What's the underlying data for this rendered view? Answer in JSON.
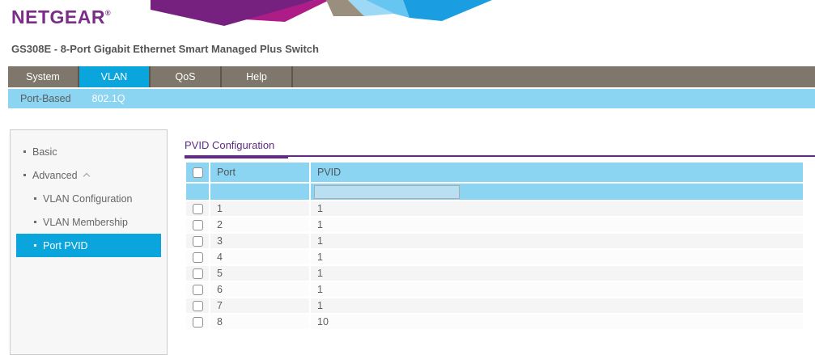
{
  "brand": {
    "name": "NETGEAR",
    "registered_mark": "®"
  },
  "device_title": "GS308E - 8-Port Gigabit Ethernet Smart Managed Plus Switch",
  "nav": {
    "tabs": [
      {
        "label": "System",
        "active": false
      },
      {
        "label": "VLAN",
        "active": true
      },
      {
        "label": "QoS",
        "active": false
      },
      {
        "label": "Help",
        "active": false
      }
    ]
  },
  "subnav": {
    "items": [
      {
        "label": "Port-Based",
        "active": false
      },
      {
        "label": "802.1Q",
        "active": true
      }
    ]
  },
  "sidebar": {
    "items": [
      {
        "label": "Basic",
        "level": 1,
        "active": false,
        "expanded": false
      },
      {
        "label": "Advanced",
        "level": 1,
        "active": false,
        "expanded": true
      },
      {
        "label": "VLAN Configuration",
        "level": 2,
        "active": false,
        "expanded": false
      },
      {
        "label": "VLAN Membership",
        "level": 2,
        "active": false,
        "expanded": false
      },
      {
        "label": "Port PVID",
        "level": 2,
        "active": true,
        "expanded": false
      }
    ]
  },
  "main": {
    "section_title": "PVID Configuration",
    "table": {
      "select_all_checked": false,
      "columns": [
        {
          "key": "port",
          "label": "Port"
        },
        {
          "key": "pvid",
          "label": "PVID"
        }
      ],
      "filter": {
        "pvid_value": ""
      },
      "rows": [
        {
          "port": "1",
          "pvid": "1",
          "checked": false
        },
        {
          "port": "2",
          "pvid": "1",
          "checked": false
        },
        {
          "port": "3",
          "pvid": "1",
          "checked": false
        },
        {
          "port": "4",
          "pvid": "1",
          "checked": false
        },
        {
          "port": "5",
          "pvid": "1",
          "checked": false
        },
        {
          "port": "6",
          "pvid": "1",
          "checked": false
        },
        {
          "port": "7",
          "pvid": "1",
          "checked": false
        },
        {
          "port": "8",
          "pvid": "10",
          "checked": false
        }
      ]
    }
  },
  "colors": {
    "brand_purple": "#7B2E87",
    "title_purple": "#5F2C82",
    "nav_gray": "#7F776B",
    "nav_sep": "#5E5749",
    "accent_blue": "#0AA5DC",
    "subnav_blue": "#8BD4F2",
    "header_blue": "#8BD4F2",
    "sidebar_bg": "#F7F7F7",
    "sidebar_border": "#CCCCCC",
    "row_odd": "#F5F5F5",
    "row_even": "#FCFCFC",
    "text_gray": "#666666",
    "filter_input_bg": "#B9DFF3",
    "filter_input_border": "#ABABAB",
    "banner_purple": "#76217F",
    "banner_magenta": "#AD1C87",
    "banner_taupe": "#9A8E7E",
    "banner_light_blue": "#9ED8F7",
    "banner_sky_blue": "#66C5F1",
    "banner_bright_blue": "#1B9DE2"
  }
}
